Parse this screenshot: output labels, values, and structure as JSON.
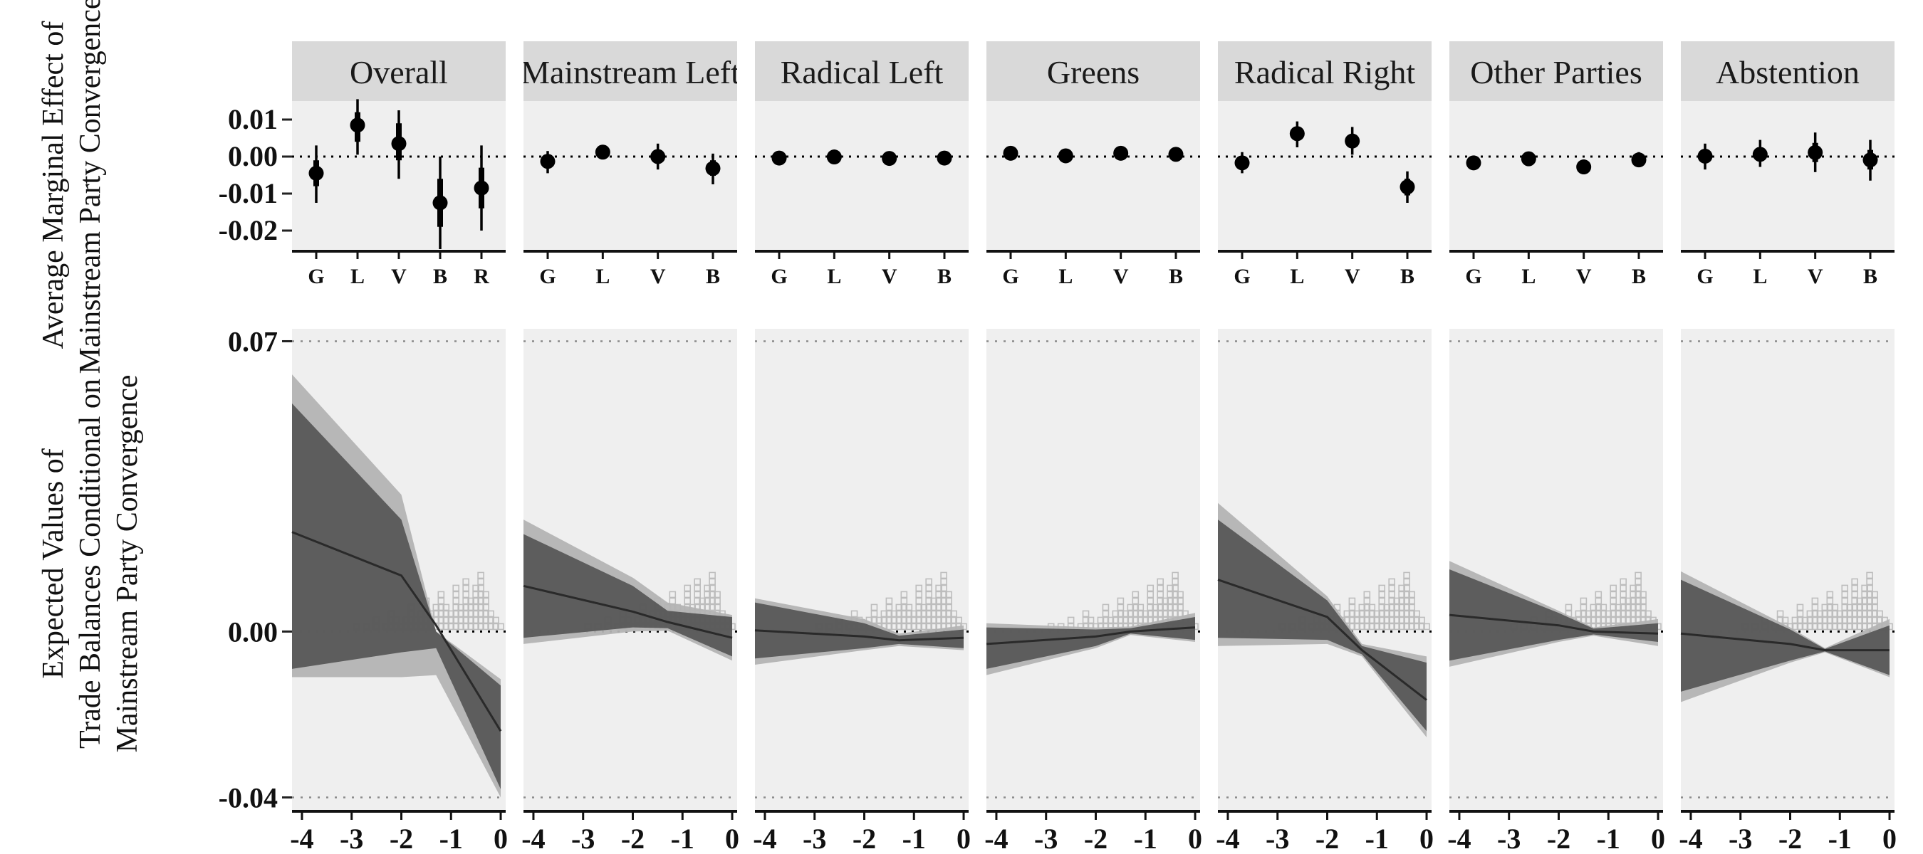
{
  "top_ylabel_lines": [
    "Average Marginal Effect of",
    "Mainstream Party Convergence"
  ],
  "bottom_ylabel_lines": [
    "Expected Values of",
    "Trade Balances Conditional on",
    "Mainstream Party Convergence"
  ],
  "colors": {
    "panel_bg": "#efefef",
    "strip_bg": "#d9d9d9",
    "outer_band": "#b3b3b3",
    "inner_band": "#575757",
    "line": "#2a2a2a",
    "point": "#000000",
    "hist": "#c8c8c8"
  },
  "chart_data": [
    {
      "type": "scatter",
      "title": "",
      "description_label": "point estimates with intervals",
      "ylim": [
        -0.025,
        0.015
      ],
      "yticks": [
        0.01,
        0.0,
        -0.01,
        -0.02
      ],
      "ytick_labels": [
        "0.01",
        "0.00",
        "-0.01",
        "-0.02"
      ],
      "reference_line": 0,
      "facets": [
        {
          "name": "Overall",
          "categories": [
            "G",
            "L",
            "V",
            "B",
            "R"
          ],
          "points": [
            {
              "est": -0.0045,
              "outer": [
                -0.0125,
                0.003
              ],
              "inner": [
                -0.008,
                -0.001
              ]
            },
            {
              "est": 0.0085,
              "outer": [
                0.0005,
                0.0155
              ],
              "inner": [
                0.004,
                0.012
              ]
            },
            {
              "est": 0.0035,
              "outer": [
                -0.006,
                0.0125
              ],
              "inner": [
                -0.001,
                0.009
              ]
            },
            {
              "est": -0.0125,
              "outer": [
                -0.025,
                0.0
              ],
              "inner": [
                -0.019,
                -0.006
              ]
            },
            {
              "est": -0.0085,
              "outer": [
                -0.02,
                0.003
              ],
              "inner": [
                -0.014,
                -0.003
              ]
            }
          ]
        },
        {
          "name": "Mainstream Left",
          "categories": [
            "G",
            "L",
            "V",
            "B"
          ],
          "points": [
            {
              "est": -0.0013,
              "outer": [
                -0.0045,
                0.0015
              ],
              "inner": [
                -0.003,
                0.0
              ]
            },
            {
              "est": 0.0012,
              "outer": [
                -0.0005,
                0.003
              ],
              "inner": [
                0.0002,
                0.0022
              ]
            },
            {
              "est": 0.0,
              "outer": [
                -0.0035,
                0.0035
              ],
              "inner": [
                -0.0018,
                0.0018
              ]
            },
            {
              "est": -0.0032,
              "outer": [
                -0.0075,
                0.0008
              ],
              "inner": [
                -0.0052,
                -0.001
              ]
            }
          ]
        },
        {
          "name": "Radical Left",
          "categories": [
            "G",
            "L",
            "V",
            "B"
          ],
          "points": [
            {
              "est": -0.0004,
              "outer": [
                -0.0015,
                0.0007
              ],
              "inner": [
                -0.001,
                0.0002
              ]
            },
            {
              "est": -0.0001,
              "outer": [
                -0.0012,
                0.001
              ],
              "inner": [
                -0.0006,
                0.0004
              ]
            },
            {
              "est": -0.0005,
              "outer": [
                -0.0015,
                0.0005
              ],
              "inner": [
                -0.001,
                0.0
              ]
            },
            {
              "est": -0.0004,
              "outer": [
                -0.0015,
                0.0007
              ],
              "inner": [
                -0.001,
                0.0002
              ]
            }
          ]
        },
        {
          "name": "Greens",
          "categories": [
            "G",
            "L",
            "V",
            "B"
          ],
          "points": [
            {
              "est": 0.0009,
              "outer": [
                -0.0003,
                0.002
              ],
              "inner": [
                0.0002,
                0.0015
              ]
            },
            {
              "est": 0.0002,
              "outer": [
                -0.0008,
                0.0012
              ],
              "inner": [
                -0.0003,
                0.0007
              ]
            },
            {
              "est": 0.0009,
              "outer": [
                -0.0003,
                0.002
              ],
              "inner": [
                0.0002,
                0.0015
              ]
            },
            {
              "est": 0.0006,
              "outer": [
                -0.0006,
                0.0018
              ],
              "inner": [
                0.0,
                0.0012
              ]
            }
          ]
        },
        {
          "name": "Radical Right",
          "categories": [
            "G",
            "L",
            "V",
            "B"
          ],
          "points": [
            {
              "est": -0.0017,
              "outer": [
                -0.0045,
                0.0012
              ],
              "inner": [
                -0.003,
                -0.0003
              ]
            },
            {
              "est": 0.0062,
              "outer": [
                0.0025,
                0.0095
              ],
              "inner": [
                0.0045,
                0.008
              ]
            },
            {
              "est": 0.0042,
              "outer": [
                0.0005,
                0.008
              ],
              "inner": [
                0.0025,
                0.006
              ]
            },
            {
              "est": -0.0082,
              "outer": [
                -0.0125,
                -0.004
              ],
              "inner": [
                -0.0105,
                -0.006
              ]
            }
          ]
        },
        {
          "name": "Other Parties",
          "categories": [
            "G",
            "L",
            "V",
            "B"
          ],
          "points": [
            {
              "est": -0.0017,
              "outer": [
                -0.0035,
                0.0002
              ],
              "inner": [
                -0.0026,
                -0.0008
              ]
            },
            {
              "est": -0.0006,
              "outer": [
                -0.0018,
                0.0006
              ],
              "inner": [
                -0.0012,
                0.0
              ]
            },
            {
              "est": -0.0028,
              "outer": [
                -0.0048,
                -0.0008
              ],
              "inner": [
                -0.0038,
                -0.0018
              ]
            },
            {
              "est": -0.0009,
              "outer": [
                -0.0028,
                0.0012
              ],
              "inner": [
                -0.0018,
                0.0002
              ]
            }
          ]
        },
        {
          "name": "Abstention",
          "categories": [
            "G",
            "L",
            "V",
            "B"
          ],
          "points": [
            {
              "est": 0.0001,
              "outer": [
                -0.0035,
                0.0035
              ],
              "inner": [
                -0.0017,
                0.0018
              ]
            },
            {
              "est": 0.0006,
              "outer": [
                -0.0028,
                0.0045
              ],
              "inner": [
                -0.001,
                0.0025
              ]
            },
            {
              "est": 0.0011,
              "outer": [
                -0.0042,
                0.0065
              ],
              "inner": [
                -0.0015,
                0.0037
              ]
            },
            {
              "est": -0.0009,
              "outer": [
                -0.0065,
                0.0045
              ],
              "inner": [
                -0.0035,
                0.0018
              ]
            }
          ]
        }
      ]
    },
    {
      "type": "area",
      "title": "",
      "description_label": "expected values with confidence bands and histogram",
      "xlim": [
        -4.2,
        0.1
      ],
      "xticks": [
        -4,
        -3,
        -2,
        -1,
        0
      ],
      "xtick_labels": [
        "-4",
        "-3",
        "-2",
        "-1",
        "0"
      ],
      "ylim": [
        -0.043,
        0.073
      ],
      "yticks": [
        0.07,
        0.0,
        -0.04
      ],
      "ytick_labels": [
        "0.07",
        "0.00",
        "-0.04"
      ],
      "dotted_lines": [
        0.07,
        0.0,
        -0.04
      ],
      "band_x": [
        -4.2,
        -2,
        -1.3,
        0
      ],
      "histogram": {
        "x": [
          -2.9,
          -2.7,
          -2.5,
          -2.3,
          -2.2,
          -2.1,
          -2.0,
          -1.9,
          -1.8,
          -1.7,
          -1.6,
          -1.5,
          -1.4,
          -1.3,
          -1.2,
          -1.1,
          -1.0,
          -0.9,
          -0.8,
          -0.7,
          -0.6,
          -0.5,
          -0.4,
          -0.3,
          -0.2,
          -0.1,
          0.0
        ],
        "count": [
          1,
          1,
          2,
          1,
          3,
          2,
          1,
          2,
          4,
          2,
          3,
          5,
          3,
          4,
          6,
          4,
          3,
          7,
          4,
          8,
          5,
          7,
          9,
          6,
          3,
          2,
          1
        ]
      },
      "facets": [
        {
          "name": "Overall",
          "line": [
            0.024,
            0.0135,
            0.0015,
            -0.024
          ],
          "outer_lo": [
            -0.011,
            -0.011,
            -0.0105,
            -0.04
          ],
          "outer_hi": [
            0.062,
            0.033,
            0.0,
            -0.0115
          ],
          "inner_lo": [
            -0.009,
            -0.005,
            -0.004,
            -0.038
          ],
          "inner_hi": [
            0.055,
            0.027,
            0.0,
            -0.013
          ]
        },
        {
          "name": "Mainstream Left",
          "line": [
            0.011,
            0.0048,
            0.0023,
            -0.0015
          ],
          "outer_lo": [
            -0.003,
            0.0,
            0.0002,
            -0.007
          ],
          "outer_hi": [
            0.027,
            0.013,
            0.007,
            0.004
          ],
          "inner_lo": [
            -0.0015,
            0.001,
            0.0008,
            -0.006
          ],
          "inner_hi": [
            0.0235,
            0.011,
            0.005,
            0.0035
          ]
        },
        {
          "name": "Radical Left",
          "line": [
            0.0003,
            -0.0012,
            -0.0021,
            -0.0015
          ],
          "outer_lo": [
            -0.008,
            -0.0045,
            -0.0035,
            -0.0045
          ],
          "outer_hi": [
            0.008,
            0.003,
            -0.0005,
            0.0015
          ],
          "inner_lo": [
            -0.0065,
            -0.004,
            -0.003,
            -0.004
          ],
          "inner_hi": [
            0.007,
            0.002,
            -0.001,
            0.0005
          ]
        },
        {
          "name": "Greens",
          "line": [
            -0.003,
            -0.0012,
            0.0,
            0.001
          ],
          "outer_lo": [
            -0.0105,
            -0.004,
            -0.0008,
            -0.0025
          ],
          "outer_hi": [
            0.002,
            0.001,
            0.0012,
            0.0045
          ],
          "inner_lo": [
            -0.009,
            -0.0035,
            -0.0005,
            -0.002
          ],
          "inner_hi": [
            0.001,
            0.0005,
            0.0008,
            0.0035
          ]
        },
        {
          "name": "Radical Right",
          "line": [
            0.0125,
            0.0035,
            -0.0045,
            -0.0165
          ],
          "outer_lo": [
            -0.0035,
            -0.003,
            -0.006,
            -0.0255
          ],
          "outer_hi": [
            0.031,
            0.0085,
            -0.003,
            -0.006
          ],
          "inner_lo": [
            -0.0015,
            -0.002,
            -0.0055,
            -0.024
          ],
          "inner_hi": [
            0.027,
            0.0075,
            -0.0035,
            -0.0075
          ]
        },
        {
          "name": "Other Parties",
          "line": [
            0.004,
            0.0015,
            0.0,
            -0.0005
          ],
          "outer_lo": [
            -0.0085,
            -0.0025,
            -0.001,
            -0.0035
          ],
          "outer_hi": [
            0.017,
            0.005,
            0.001,
            0.003
          ],
          "inner_lo": [
            -0.007,
            -0.002,
            -0.0007,
            -0.0025
          ],
          "inner_hi": [
            0.015,
            0.0045,
            0.0007,
            0.002
          ]
        },
        {
          "name": "Abstention",
          "line": [
            -0.0005,
            -0.003,
            -0.0045,
            -0.0045
          ],
          "outer_lo": [
            -0.017,
            -0.0075,
            -0.005,
            -0.011
          ],
          "outer_hi": [
            0.0145,
            0.001,
            -0.004,
            0.003
          ],
          "inner_lo": [
            -0.0145,
            -0.007,
            -0.0048,
            -0.0105
          ],
          "inner_hi": [
            0.0125,
            0.0005,
            -0.0042,
            0.0015
          ]
        }
      ]
    }
  ]
}
